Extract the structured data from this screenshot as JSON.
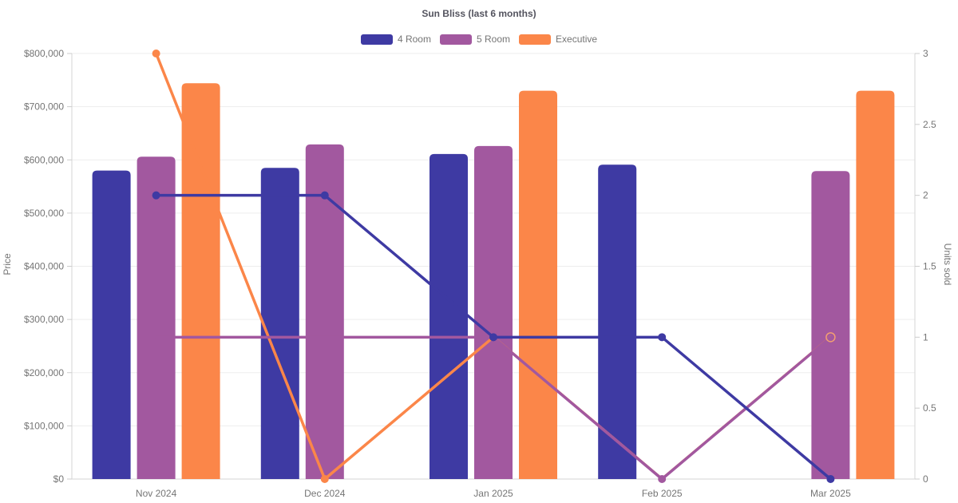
{
  "chart_data": {
    "type": "bar",
    "title": "Sun Bliss (last 6 months)",
    "categories": [
      "Nov 2024",
      "Dec 2024",
      "Jan 2025",
      "Feb 2025",
      "Mar 2025"
    ],
    "ylabel": "Price",
    "ylabel_right": "Units sold",
    "ylim_left": [
      0,
      800000
    ],
    "ylim_right": [
      0,
      3
    ],
    "left_ticks": [
      "$0",
      "$100,000",
      "$200,000",
      "$300,000",
      "$400,000",
      "$500,000",
      "$600,000",
      "$700,000",
      "$800,000"
    ],
    "right_ticks": [
      "0",
      "0.5",
      "1",
      "1.5",
      "2",
      "2.5",
      "3"
    ],
    "grid": "horizontal",
    "legend_position": "top",
    "series": [
      {
        "name": "4 Room",
        "color": "#3e3aa3",
        "bar_prices": [
          580000,
          585000,
          611000,
          591000,
          null
        ],
        "line_units": [
          2,
          2,
          1,
          1,
          0
        ],
        "dot_indices": [
          0,
          1,
          2,
          3,
          4
        ]
      },
      {
        "name": "5 Room",
        "color": "#a2589f",
        "bar_prices": [
          606000,
          629000,
          626000,
          null,
          579000
        ],
        "line_units": [
          1,
          1,
          1,
          0,
          1
        ],
        "dot_indices": [
          3
        ]
      },
      {
        "name": "Executive",
        "color": "#fb8649",
        "bar_prices": [
          744000,
          null,
          730000,
          null,
          730000
        ],
        "line_units": [
          3,
          0,
          1,
          0,
          1
        ],
        "dot_indices": [
          0,
          1
        ],
        "thin_line_from_index": 2,
        "end_open_marker": {
          "index": 4,
          "color": "#f29e72"
        }
      }
    ]
  }
}
